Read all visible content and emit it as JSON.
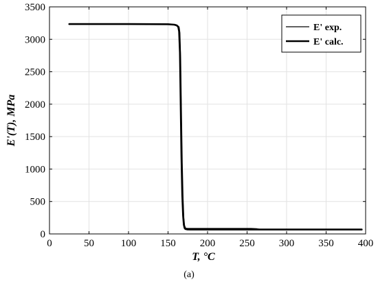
{
  "chart_data": {
    "type": "line",
    "xlabel_main": "T",
    "xlabel_unit": ", °C",
    "ylabel": "E'(T), MPa",
    "xlim": [
      0,
      400
    ],
    "ylim": [
      0,
      3500
    ],
    "xticks": [
      0,
      50,
      100,
      150,
      200,
      250,
      300,
      350,
      400
    ],
    "yticks": [
      0,
      500,
      1000,
      1500,
      2000,
      2500,
      3000,
      3500
    ],
    "grid": true,
    "legend_position": "top-right",
    "series": [
      {
        "name": "E' exp.",
        "color": "#000000",
        "x": [
          25,
          100,
          150,
          160,
          162,
          164,
          165,
          166,
          167,
          168,
          169,
          170,
          171,
          172,
          173,
          175,
          180,
          200,
          240,
          255,
          262,
          268,
          300,
          395
        ],
        "y": [
          3235,
          3235,
          3232,
          3225,
          3215,
          3190,
          3100,
          2700,
          1900,
          1100,
          550,
          250,
          130,
          95,
          88,
          85,
          85,
          85,
          85,
          85,
          80,
          68,
          68,
          68
        ]
      },
      {
        "name": "E' calc.",
        "color": "#000000",
        "x": [
          25,
          100,
          150,
          158,
          161,
          163,
          164,
          165,
          166,
          167,
          168,
          169,
          170,
          171,
          172,
          174,
          178,
          200,
          300,
          395
        ],
        "y": [
          3235,
          3235,
          3232,
          3225,
          3215,
          3190,
          3120,
          2800,
          2000,
          1200,
          600,
          280,
          140,
          90,
          75,
          70,
          68,
          68,
          68,
          68
        ]
      }
    ]
  },
  "caption": "(a)"
}
